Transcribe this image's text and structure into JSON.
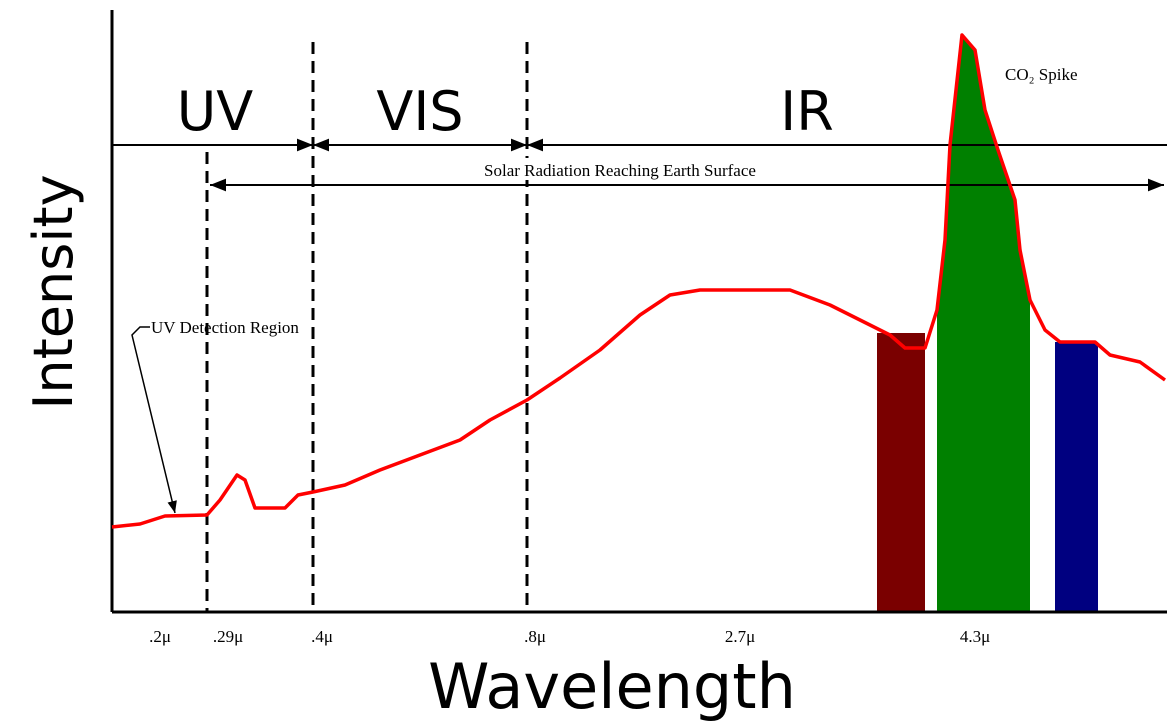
{
  "regions": [
    "UV",
    "VIS",
    "IR"
  ],
  "solar_label": "Solar Radiation Reaching Earth Surface",
  "spike_label": "CO₂ Spike",
  "detection_label": "UV Detection Region",
  "y_axis_label": "Intensity",
  "x_axis_label": "Wavelength",
  "tick_labels": [
    ".2μ",
    ".29μ",
    ".4μ",
    ".8μ",
    "2.7μ",
    "4.3μ"
  ]
}
